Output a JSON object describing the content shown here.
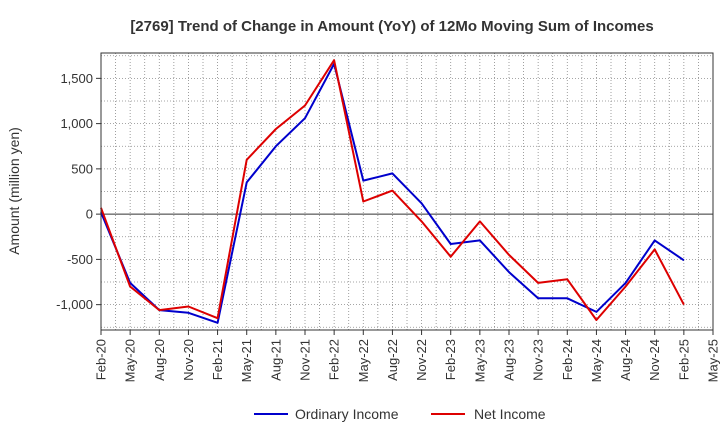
{
  "chart_data": {
    "type": "line",
    "title": "[2769]  Trend of Change in Amount (YoY) of 12Mo Moving Sum of Incomes",
    "xlabel": "",
    "ylabel": "Amount (million yen)",
    "x_tick_labels": [
      "Feb-20",
      "May-20",
      "Aug-20",
      "Nov-20",
      "Feb-21",
      "May-21",
      "Aug-21",
      "Nov-21",
      "Feb-22",
      "May-22",
      "Aug-22",
      "Nov-22",
      "Feb-23",
      "May-23",
      "Aug-23",
      "Nov-23",
      "Feb-24",
      "May-24",
      "Aug-24",
      "Nov-24",
      "Feb-25",
      "May-25"
    ],
    "categories": [
      "Feb-20",
      "May-20",
      "Aug-20",
      "Nov-20",
      "Feb-21",
      "May-21",
      "Aug-21",
      "Nov-21",
      "Feb-22",
      "May-22",
      "Aug-22",
      "Nov-22",
      "Feb-23",
      "May-23",
      "Aug-23",
      "Nov-23",
      "Feb-24",
      "May-24",
      "Aug-24",
      "Nov-24",
      "Feb-25"
    ],
    "y_ticks": [
      -1000,
      -500,
      0,
      500,
      1000,
      1500
    ],
    "y_tick_labels": [
      "-1,000",
      "-500",
      "0",
      "500",
      "1,000",
      "1,500"
    ],
    "ylim": [
      -1280,
      1780
    ],
    "grid": true,
    "legend_position": "bottom-center",
    "series": [
      {
        "name": "Ordinary Income",
        "color": "#0000cc",
        "values": [
          20,
          -760,
          -1060,
          -1090,
          -1200,
          350,
          750,
          1060,
          1660,
          370,
          450,
          120,
          -330,
          -290,
          -640,
          -930,
          -930,
          -1080,
          -760,
          -290,
          -510
        ]
      },
      {
        "name": "Net Income",
        "color": "#dd0000",
        "values": [
          70,
          -800,
          -1060,
          -1020,
          -1150,
          600,
          940,
          1200,
          1700,
          140,
          260,
          -80,
          -470,
          -80,
          -450,
          -760,
          -720,
          -1170,
          -800,
          -390,
          -1000
        ]
      }
    ]
  }
}
